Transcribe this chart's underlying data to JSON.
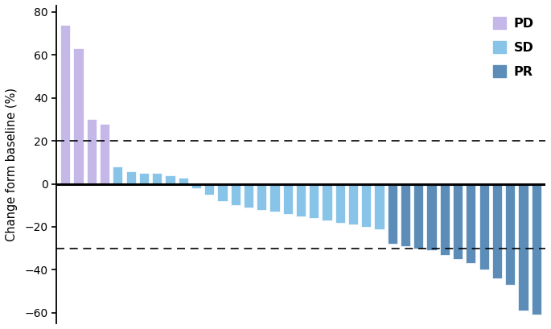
{
  "values": [
    74,
    63,
    30,
    28,
    8,
    6,
    5,
    5,
    4,
    3,
    -2,
    -5,
    -8,
    -10,
    -11,
    -12,
    -13,
    -14,
    -15,
    -16,
    -17,
    -18,
    -19,
    -20,
    -21,
    -28,
    -29,
    -30,
    -31,
    -33,
    -35,
    -37,
    -40,
    -44,
    -47,
    -59,
    -61
  ],
  "categories": [
    "PD",
    "PD",
    "PD",
    "PD",
    "SD",
    "SD",
    "SD",
    "SD",
    "SD",
    "SD",
    "SD",
    "SD",
    "SD",
    "SD",
    "SD",
    "SD",
    "SD",
    "SD",
    "SD",
    "SD",
    "SD",
    "SD",
    "SD",
    "SD",
    "SD",
    "PR",
    "PR",
    "PR",
    "PR",
    "PR",
    "PR",
    "PR",
    "PR",
    "PR",
    "PR",
    "PR",
    "PR"
  ],
  "colors": {
    "PD": "#c5b8e8",
    "SD": "#87c4e8",
    "PR": "#5b8db8"
  },
  "ylabel": "Change form baseline (%)",
  "ylim": [
    -65,
    83
  ],
  "yticks": [
    -60,
    -40,
    -20,
    0,
    20,
    40,
    60,
    80
  ],
  "dashed_lines": [
    20,
    -30
  ],
  "zero_line": 0,
  "background_color": "#ffffff",
  "bar_width": 0.75,
  "bar_edgecolor": "white",
  "bar_edgewidth": 0.5
}
